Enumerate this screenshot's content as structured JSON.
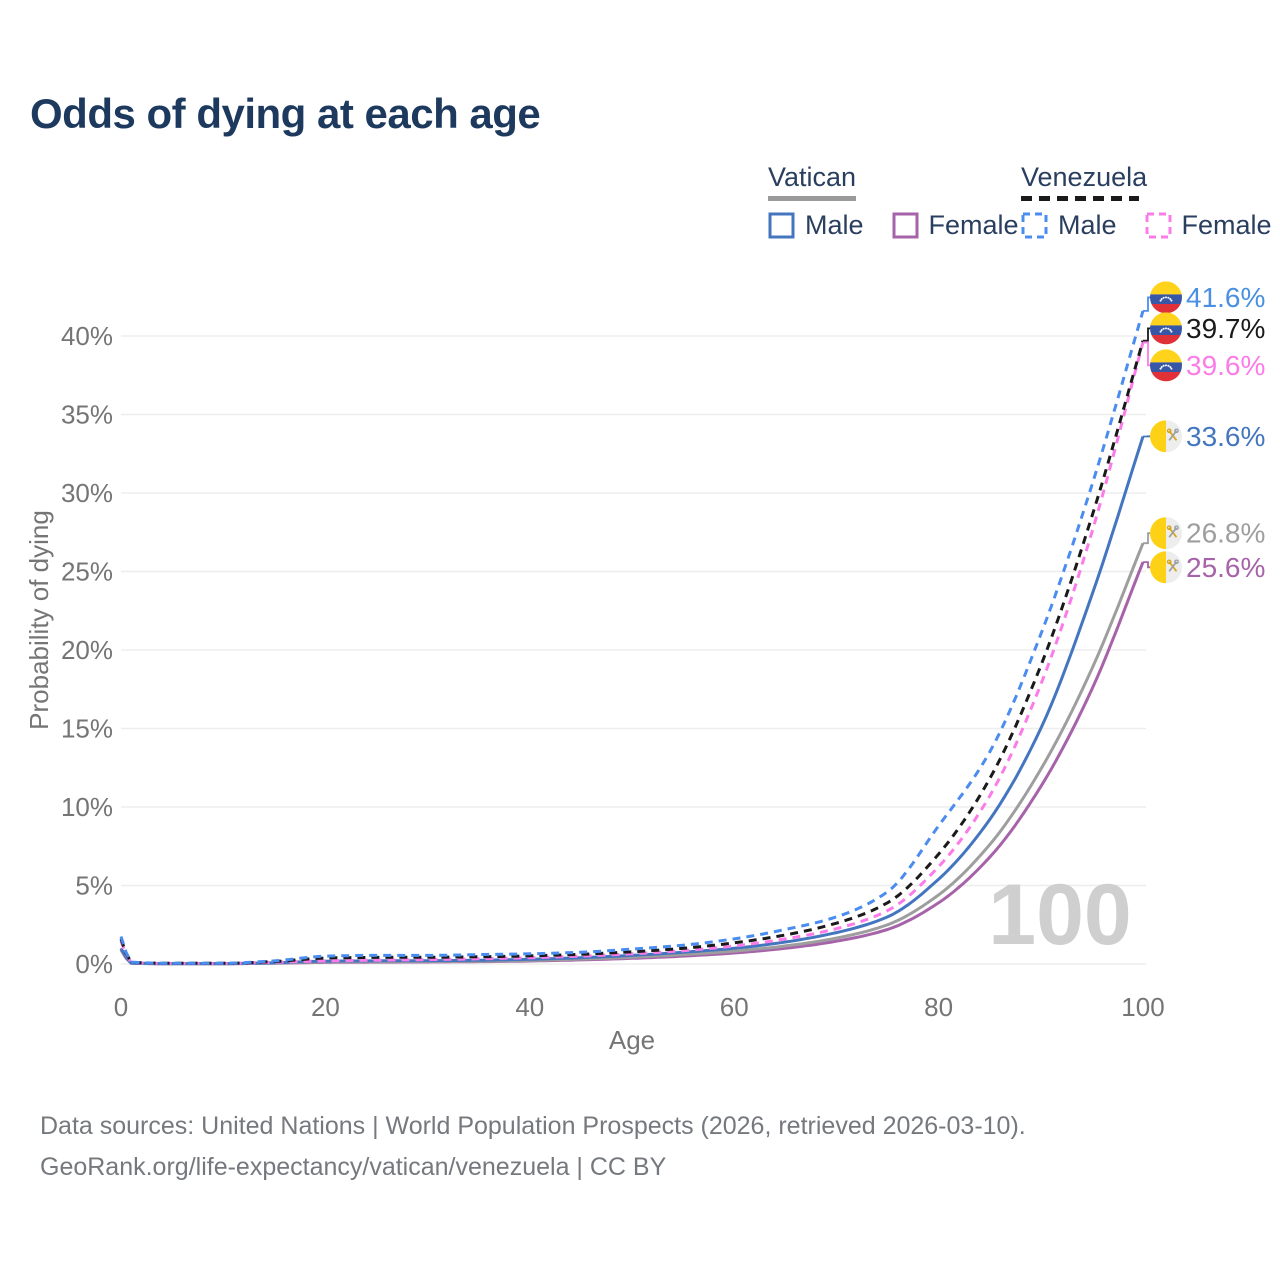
{
  "title": "Odds of dying at each age",
  "legend": {
    "groups": [
      {
        "label": "Vatican",
        "line_style": "solid",
        "line_color": "#9a9a9a",
        "items": [
          {
            "label": "Male",
            "color": "#4476c0"
          },
          {
            "label": "Female",
            "color": "#a763a9"
          }
        ]
      },
      {
        "label": "Venezuela",
        "line_style": "dashed",
        "line_color": "#1a1a1a",
        "items": [
          {
            "label": "Male",
            "color": "#4b8cf0"
          },
          {
            "label": "Female",
            "color": "#fb7ce8"
          }
        ]
      }
    ]
  },
  "footer": {
    "line1": "Data sources: United Nations | World Population Prospects (2026, retrieved 2026-03-10).",
    "line2": "GeoRank.org/life-expectancy/vatican/venezuela | CC BY"
  },
  "colors": {
    "title": "#1d3a5e",
    "axis_text": "#757575",
    "grid": "#ededed",
    "watermark": "#cfcfcf",
    "legend_text": "#2a3f5f",
    "footer_text": "#75797e"
  },
  "flags": {
    "venezuela": {
      "yellow": "#ffd21c",
      "blue": "#3757a6",
      "red": "#e03138",
      "stars": "#ffffff"
    },
    "vatican": {
      "yellow": "#fdd216",
      "white": "#ededed",
      "key_gold": "#d9a513",
      "key_silver": "#9aa0a6"
    }
  },
  "chart_data": {
    "type": "line",
    "title": "Odds of dying at each age",
    "xlabel": "Age",
    "ylabel": "Probability of dying",
    "xlim": [
      0,
      100
    ],
    "ylim_pct": [
      0,
      43
    ],
    "x_ticks": [
      0,
      20,
      40,
      60,
      80,
      100
    ],
    "y_ticks_pct": [
      0,
      5,
      10,
      15,
      20,
      25,
      30,
      35,
      40
    ],
    "grid": "horizontal",
    "legend_position": "top-right",
    "watermark": "100",
    "ages": [
      0,
      1,
      5,
      10,
      15,
      20,
      25,
      30,
      35,
      40,
      45,
      50,
      55,
      60,
      65,
      70,
      75,
      80,
      85,
      90,
      95,
      100
    ],
    "series": [
      {
        "name": "Venezuela Male",
        "country": "Venezuela",
        "sex": "Male",
        "style": "dashed",
        "color": "#4b8cf0",
        "flag": "venezuela",
        "end_label": "41.6%",
        "label_color": "#4a90e2",
        "values_pct": [
          1.75,
          0.12,
          0.05,
          0.05,
          0.2,
          0.5,
          0.55,
          0.55,
          0.6,
          0.65,
          0.75,
          0.95,
          1.2,
          1.6,
          2.2,
          3.0,
          4.6,
          8.8,
          13.5,
          21.0,
          30.5,
          41.6
        ]
      },
      {
        "name": "Venezuela Both sexes",
        "country": "Venezuela",
        "sex": "Both",
        "style": "dashed",
        "color": "#1a1a1a",
        "flag": "venezuela",
        "end_label": "39.7%",
        "label_color": "#1a1a1a",
        "values_pct": [
          1.6,
          0.11,
          0.045,
          0.045,
          0.16,
          0.38,
          0.42,
          0.43,
          0.46,
          0.52,
          0.62,
          0.78,
          1.0,
          1.35,
          1.85,
          2.6,
          3.9,
          7.0,
          11.8,
          19.0,
          28.5,
          39.7
        ]
      },
      {
        "name": "Venezuela Female",
        "country": "Venezuela",
        "sex": "Female",
        "style": "dashed",
        "color": "#fb7ce8",
        "flag": "venezuela",
        "end_label": "39.6%",
        "label_color": "#fb7ce8",
        "values_pct": [
          1.45,
          0.1,
          0.04,
          0.04,
          0.11,
          0.2,
          0.24,
          0.28,
          0.33,
          0.4,
          0.5,
          0.65,
          0.85,
          1.15,
          1.6,
          2.25,
          3.4,
          6.2,
          10.7,
          17.8,
          27.5,
          39.6
        ]
      },
      {
        "name": "Vatican Male",
        "country": "Vatican",
        "sex": "Male",
        "style": "solid",
        "color": "#4476c0",
        "flag": "vatican",
        "end_label": "33.6%",
        "label_color": "#4476c0",
        "values_pct": [
          1.0,
          0.06,
          0.025,
          0.025,
          0.08,
          0.18,
          0.2,
          0.21,
          0.24,
          0.3,
          0.4,
          0.55,
          0.75,
          1.0,
          1.4,
          2.0,
          3.0,
          5.4,
          9.2,
          15.0,
          23.5,
          33.6
        ]
      },
      {
        "name": "Vatican Both sexes",
        "country": "Vatican",
        "sex": "Both",
        "style": "solid",
        "color": "#9e9e9e",
        "flag": "vatican",
        "end_label": "26.8%",
        "label_color": "#9e9e9e",
        "values_pct": [
          0.95,
          0.05,
          0.02,
          0.02,
          0.06,
          0.13,
          0.15,
          0.16,
          0.18,
          0.23,
          0.31,
          0.43,
          0.6,
          0.82,
          1.15,
          1.65,
          2.5,
          4.4,
          7.6,
          12.4,
          18.8,
          26.8
        ]
      },
      {
        "name": "Vatican Female",
        "country": "Vatican",
        "sex": "Female",
        "style": "solid",
        "color": "#a763a9",
        "flag": "vatican",
        "end_label": "25.6%",
        "label_color": "#a763a9",
        "values_pct": [
          0.9,
          0.045,
          0.018,
          0.018,
          0.05,
          0.1,
          0.12,
          0.13,
          0.15,
          0.19,
          0.26,
          0.36,
          0.5,
          0.7,
          1.0,
          1.45,
          2.2,
          3.9,
          6.8,
          11.3,
          17.5,
          25.6
        ]
      }
    ]
  }
}
